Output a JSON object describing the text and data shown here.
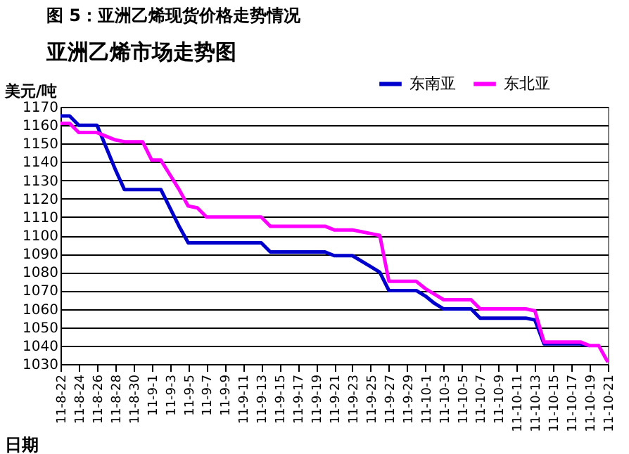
{
  "chart_data": {
    "type": "line",
    "title": "图 5：亚洲乙烯现货价格走势情况",
    "subtitle": "亚洲乙烯市场走势图",
    "xlabel": "日期",
    "ylabel": "美元/吨",
    "categories": [
      "11-8-22",
      null,
      "11-8-24",
      null,
      "11-8-26",
      null,
      "11-8-28",
      null,
      "11-8-30",
      null,
      "11-9-1",
      null,
      "11-9-3",
      null,
      "11-9-5",
      null,
      "11-9-7",
      null,
      "11-9-9",
      null,
      "11-9-11",
      null,
      "11-9-13",
      null,
      "11-9-15",
      null,
      "11-9-17",
      null,
      "11-9-19",
      null,
      "11-9-21",
      null,
      "11-9-23",
      null,
      "11-9-25",
      null,
      "11-9-27",
      null,
      "11-9-29",
      null,
      "11-10-1",
      null,
      "11-10-3",
      null,
      "11-10-5",
      null,
      "11-10-7",
      null,
      "11-10-9",
      null,
      "11-10-11",
      null,
      "11-10-13",
      null,
      "11-10-15",
      null,
      "11-10-17",
      null,
      "11-10-19",
      null,
      "11-10-21"
    ],
    "series": [
      {
        "name": "东南亚",
        "color": "#0000cc",
        "values": [
          1165,
          1165,
          1160,
          1160,
          1160,
          1148,
          1136,
          1125,
          1125,
          1125,
          1125,
          1125,
          1115,
          1105,
          1096,
          1096,
          1096,
          1096,
          1096,
          1096,
          1096,
          1096,
          1096,
          1091,
          1091,
          1091,
          1091,
          1091,
          1091,
          1091,
          1089,
          1089,
          1089,
          1086,
          1083,
          1080,
          1070,
          1070,
          1070,
          1070,
          1067,
          1063,
          1060,
          1060,
          1060,
          1060,
          1055,
          1055,
          1055,
          1055,
          1055,
          1055,
          1054,
          1041,
          1041,
          1041,
          1041,
          1041,
          1040,
          null,
          null
        ]
      },
      {
        "name": "东北亚",
        "color": "#ff00ff",
        "values": [
          1161,
          1161,
          1156,
          1156,
          1156,
          1154,
          1152,
          1151,
          1151,
          1151,
          1141,
          1141,
          1133,
          1125,
          1116,
          1115,
          1110,
          1110,
          1110,
          1110,
          1110,
          1110,
          1110,
          1105,
          1105,
          1105,
          1105,
          1105,
          1105,
          1105,
          1103,
          1103,
          1103,
          1102,
          1101,
          1100,
          1075,
          1075,
          1075,
          1075,
          1071,
          1068,
          1065,
          1065,
          1065,
          1065,
          1060,
          1060,
          1060,
          1060,
          1060,
          1060,
          1059,
          1042,
          1042,
          1042,
          1042,
          1042,
          1040,
          1040,
          1031
        ]
      }
    ],
    "ylim": [
      1030,
      1170
    ],
    "yticks": [
      1030,
      1040,
      1050,
      1060,
      1070,
      1080,
      1090,
      1100,
      1110,
      1120,
      1130,
      1140,
      1150,
      1160,
      1170
    ],
    "grid": "y",
    "legend": "top right"
  }
}
